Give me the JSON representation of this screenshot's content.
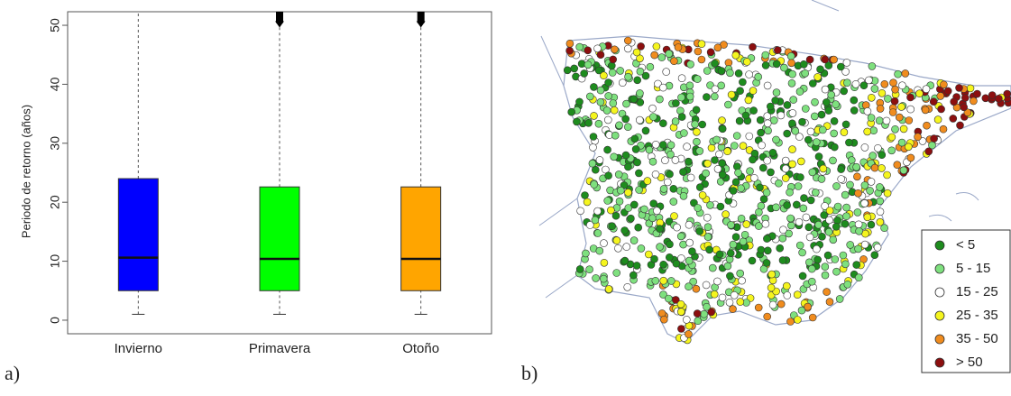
{
  "chart_data": [
    {
      "type": "box",
      "panel_label": "a)",
      "ylabel": "Periodo de retorno (años)",
      "categories": [
        "Invierno",
        "Primavera",
        "Otoño"
      ],
      "colors": [
        "#0000ff",
        "#00ff00",
        "#ffa500"
      ],
      "whisker_low": [
        1,
        1,
        1
      ],
      "q1": [
        5,
        5,
        5
      ],
      "median": [
        10.6,
        10.4,
        10.4
      ],
      "q3": [
        24,
        22.6,
        22.6
      ],
      "whisker_high": [
        52.3,
        52.3,
        52.3
      ],
      "outliers": [
        [],
        [
          51
        ],
        [
          51
        ]
      ],
      "ylim": [
        -2.3,
        52.3
      ],
      "yticks": [
        0,
        10,
        20,
        30,
        40,
        50
      ]
    },
    {
      "type": "map",
      "panel_label": "b)",
      "legend": [
        {
          "label": "< 5",
          "color": "#1e8c1e"
        },
        {
          "label": "5 - 15",
          "color": "#7ee07e"
        },
        {
          "label": "15 - 25",
          "color": "#ffffff"
        },
        {
          "label": "25 - 35",
          "color": "#f5f51e"
        },
        {
          "label": "35 - 50",
          "color": "#f08c1e"
        },
        {
          "label": "> 50",
          "color": "#8c0f0f"
        }
      ]
    }
  ]
}
